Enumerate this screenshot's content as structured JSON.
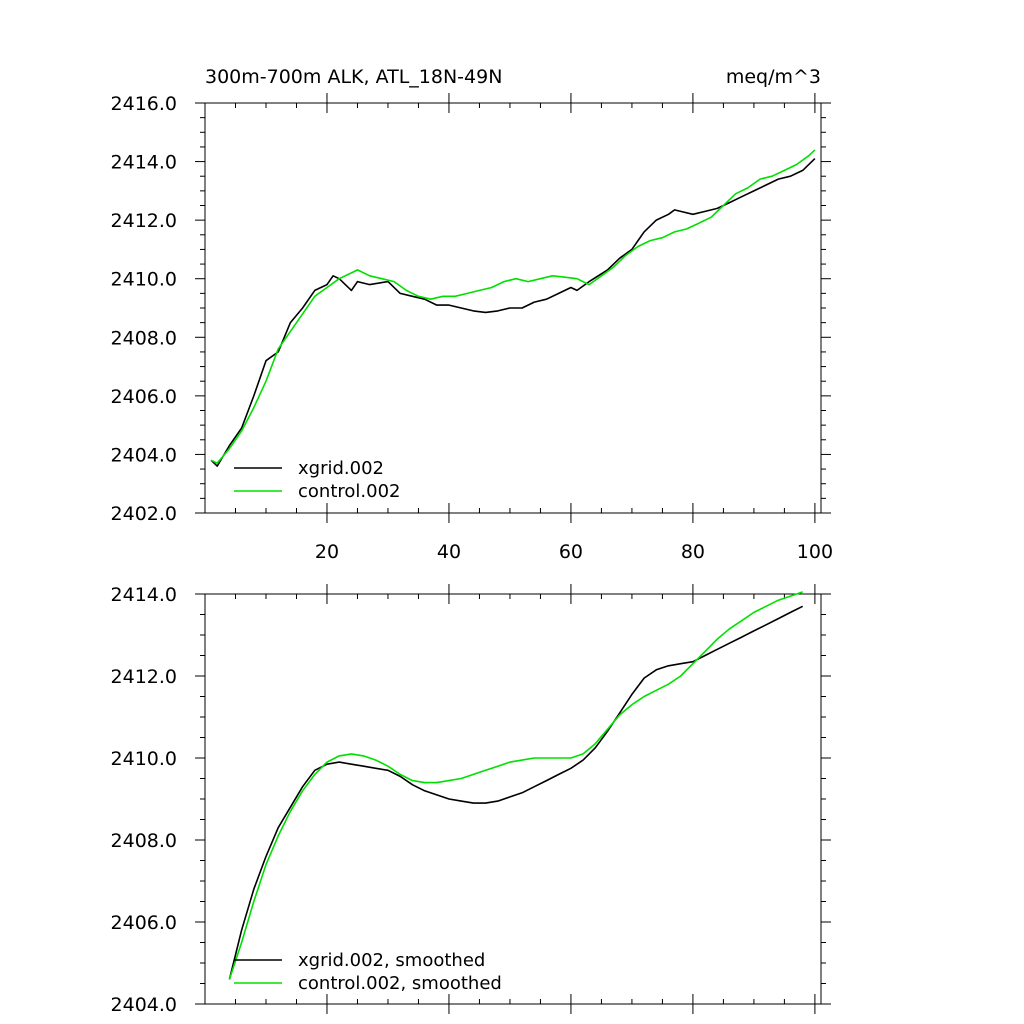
{
  "chart_data": [
    {
      "type": "line",
      "title_left": "300m-700m ALK, ATL_18N-49N",
      "title_right": "meq/m^3",
      "xlim": [
        0,
        101
      ],
      "ylim": [
        2402,
        2416
      ],
      "xticks": [
        20,
        40,
        60,
        80,
        100
      ],
      "yticks": [
        2402,
        2404,
        2406,
        2408,
        2410,
        2412,
        2414,
        2416
      ],
      "xtick_labels": [
        "20",
        "40",
        "60",
        "80",
        "100"
      ],
      "ytick_labels": [
        "2402.0",
        "2404.0",
        "2406.0",
        "2408.0",
        "2410.0",
        "2412.0",
        "2414.0",
        "2416.0"
      ],
      "legend_position": "bottom-left",
      "series": [
        {
          "name": "xgrid.002",
          "color": "#000000",
          "x": [
            1,
            2,
            4,
            6,
            8,
            10,
            12,
            14,
            16,
            18,
            20,
            21,
            22,
            24,
            25,
            27,
            30,
            32,
            34,
            36,
            38,
            40,
            42,
            44,
            46,
            48,
            50,
            52,
            54,
            56,
            58,
            60,
            61,
            63,
            66,
            68,
            70,
            72,
            74,
            76,
            77,
            78,
            80,
            82,
            84,
            86,
            88,
            90,
            92,
            94,
            96,
            98,
            100
          ],
          "values": [
            2403.8,
            2403.6,
            2404.3,
            2404.9,
            2406.0,
            2407.2,
            2407.5,
            2408.5,
            2409.0,
            2409.6,
            2409.8,
            2410.1,
            2410.0,
            2409.6,
            2409.9,
            2409.8,
            2409.9,
            2409.5,
            2409.4,
            2409.3,
            2409.1,
            2409.1,
            2409.0,
            2408.9,
            2408.85,
            2408.9,
            2409.0,
            2409.0,
            2409.2,
            2409.3,
            2409.5,
            2409.7,
            2409.6,
            2409.9,
            2410.3,
            2410.7,
            2411.0,
            2411.6,
            2412.0,
            2412.2,
            2412.35,
            2412.3,
            2412.2,
            2412.3,
            2412.4,
            2412.6,
            2412.8,
            2413.0,
            2413.2,
            2413.4,
            2413.5,
            2413.7,
            2414.1
          ]
        },
        {
          "name": "control.002",
          "color": "#00e000",
          "x": [
            1,
            2,
            4,
            6,
            8,
            10,
            12,
            14,
            16,
            18,
            20,
            22,
            24,
            25,
            27,
            29,
            31,
            33,
            35,
            37,
            39,
            41,
            43,
            45,
            47,
            49,
            51,
            53,
            55,
            57,
            59,
            61,
            63,
            65,
            67,
            69,
            71,
            73,
            75,
            77,
            79,
            81,
            83,
            85,
            87,
            89,
            91,
            93,
            95,
            97,
            99,
            100
          ],
          "values": [
            2403.8,
            2403.7,
            2404.2,
            2404.8,
            2405.6,
            2406.5,
            2407.6,
            2408.2,
            2408.8,
            2409.4,
            2409.7,
            2410.0,
            2410.2,
            2410.3,
            2410.1,
            2410.0,
            2409.9,
            2409.6,
            2409.4,
            2409.3,
            2409.4,
            2409.4,
            2409.5,
            2409.6,
            2409.7,
            2409.9,
            2410.0,
            2409.9,
            2410.0,
            2410.1,
            2410.05,
            2410.0,
            2409.8,
            2410.1,
            2410.4,
            2410.8,
            2411.1,
            2411.3,
            2411.4,
            2411.6,
            2411.7,
            2411.9,
            2412.1,
            2412.5,
            2412.9,
            2413.1,
            2413.4,
            2413.5,
            2413.7,
            2413.9,
            2414.2,
            2414.4
          ]
        }
      ]
    },
    {
      "type": "line",
      "xlim": [
        0,
        101
      ],
      "ylim": [
        2404,
        2414
      ],
      "xticks": [
        20,
        40,
        60,
        80,
        100
      ],
      "yticks": [
        2404,
        2406,
        2408,
        2410,
        2412,
        2414
      ],
      "ytick_labels": [
        "2404.0",
        "2406.0",
        "2408.0",
        "2410.0",
        "2412.0",
        "2414.0"
      ],
      "legend_position": "bottom-left",
      "series": [
        {
          "name": "xgrid.002, smoothed",
          "color": "#000000",
          "x": [
            4,
            6,
            8,
            10,
            12,
            14,
            16,
            18,
            20,
            22,
            24,
            26,
            28,
            30,
            32,
            34,
            36,
            38,
            40,
            42,
            44,
            46,
            48,
            50,
            52,
            54,
            56,
            58,
            60,
            62,
            64,
            66,
            68,
            70,
            72,
            74,
            76,
            78,
            80,
            82,
            84,
            86,
            88,
            90,
            92,
            94,
            96,
            98
          ],
          "values": [
            2404.6,
            2405.8,
            2406.8,
            2407.6,
            2408.3,
            2408.8,
            2409.3,
            2409.7,
            2409.85,
            2409.9,
            2409.85,
            2409.8,
            2409.75,
            2409.7,
            2409.55,
            2409.35,
            2409.2,
            2409.1,
            2409.0,
            2408.95,
            2408.9,
            2408.9,
            2408.95,
            2409.05,
            2409.15,
            2409.3,
            2409.45,
            2409.6,
            2409.75,
            2409.95,
            2410.25,
            2410.65,
            2411.1,
            2411.55,
            2411.95,
            2412.15,
            2412.25,
            2412.3,
            2412.35,
            2412.5,
            2412.65,
            2412.8,
            2412.95,
            2413.1,
            2413.25,
            2413.4,
            2413.55,
            2413.7
          ]
        },
        {
          "name": "control.002, smoothed",
          "color": "#00e000",
          "x": [
            4,
            6,
            8,
            10,
            12,
            14,
            16,
            18,
            20,
            22,
            24,
            26,
            28,
            30,
            32,
            34,
            36,
            38,
            40,
            42,
            44,
            46,
            48,
            50,
            52,
            54,
            56,
            58,
            60,
            62,
            64,
            66,
            68,
            70,
            72,
            74,
            76,
            78,
            80,
            82,
            84,
            86,
            88,
            90,
            92,
            94,
            96,
            98
          ],
          "values": [
            2404.6,
            2405.5,
            2406.5,
            2407.4,
            2408.1,
            2408.7,
            2409.2,
            2409.6,
            2409.9,
            2410.05,
            2410.1,
            2410.05,
            2409.95,
            2409.8,
            2409.6,
            2409.45,
            2409.4,
            2409.4,
            2409.45,
            2409.5,
            2409.6,
            2409.7,
            2409.8,
            2409.9,
            2409.95,
            2410.0,
            2410.0,
            2410.0,
            2410.0,
            2410.1,
            2410.35,
            2410.7,
            2411.05,
            2411.3,
            2411.5,
            2411.65,
            2411.8,
            2412.0,
            2412.3,
            2412.6,
            2412.9,
            2413.15,
            2413.35,
            2413.55,
            2413.7,
            2413.85,
            2413.95,
            2414.05
          ]
        }
      ]
    }
  ]
}
